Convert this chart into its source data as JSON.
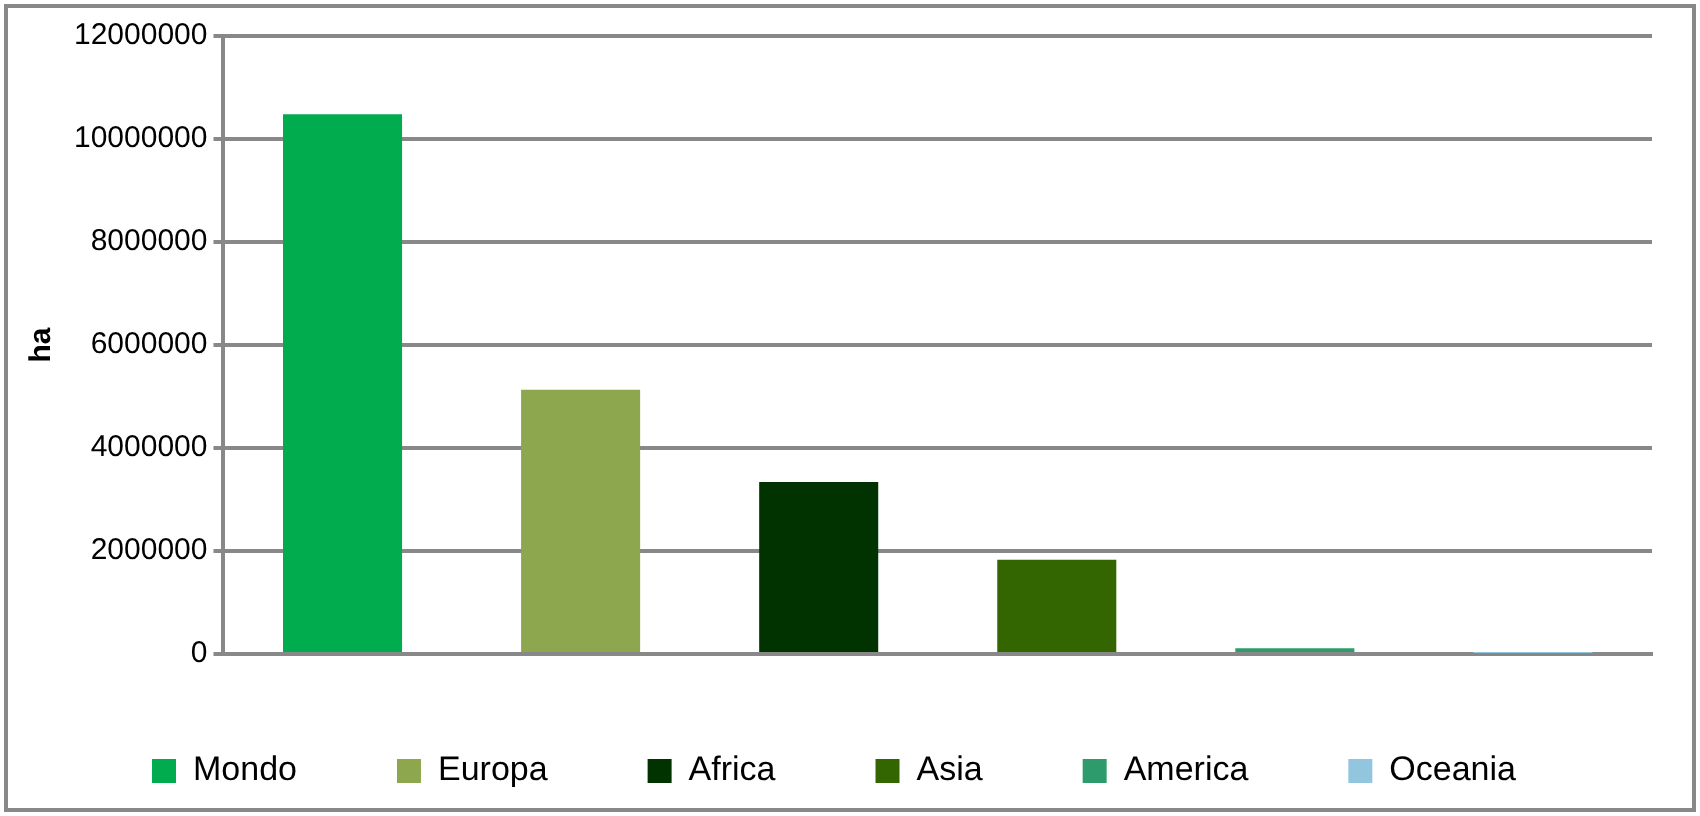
{
  "chart_data": {
    "type": "bar",
    "ylabel": "ha",
    "categories": [
      null
    ],
    "series": [
      {
        "name": "Mondo",
        "color": "#00ac4e",
        "values": [
          10480000
        ]
      },
      {
        "name": "Europa",
        "color": "#8da74e",
        "values": [
          5130000
        ]
      },
      {
        "name": "Africa",
        "color": "#003300",
        "values": [
          3340000
        ]
      },
      {
        "name": "Asia",
        "color": "#336600",
        "values": [
          1830000
        ]
      },
      {
        "name": "America",
        "color": "#2e9b6c",
        "values": [
          110000
        ]
      },
      {
        "name": "Oceania",
        "color": "#92c5de",
        "values": [
          20000
        ]
      }
    ],
    "ylim": [
      0,
      12000000
    ],
    "yticks": [
      0,
      2000000,
      4000000,
      6000000,
      8000000,
      10000000,
      12000000
    ],
    "grid": "y",
    "legend": "bottom",
    "tick_labels": "y"
  }
}
